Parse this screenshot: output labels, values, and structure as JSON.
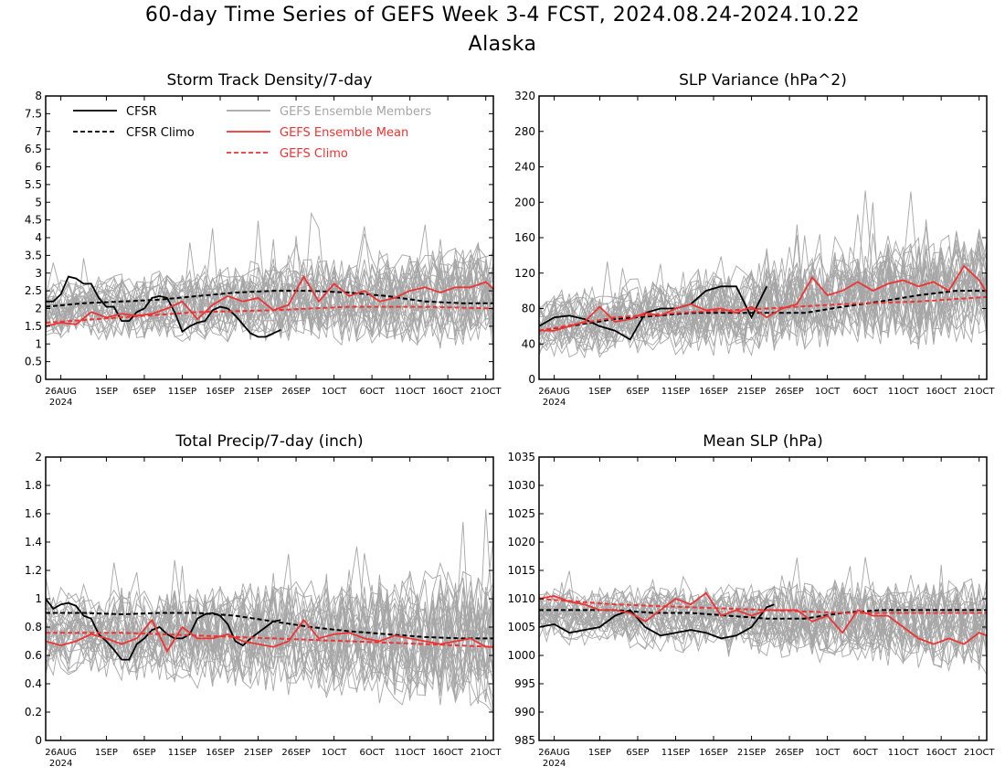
{
  "title": "60-day Time Series of GEFS Week 3-4 FCST, 2024.08.24-2024.10.22",
  "subtitle": "Alaska",
  "colors": {
    "cfsr": "#000000",
    "members": "#a6a6a6",
    "ens_mean": "#f03232",
    "gefs_climo": "#f03232"
  },
  "legend": {
    "cfsr": "CFSR",
    "cfsr_climo": "CFSR Climo",
    "members": "GEFS Ensemble Members",
    "ens_mean": "GEFS Ensemble Mean",
    "gefs_climo": "GEFS Climo"
  },
  "x_ticks": [
    "26AUG",
    "1SEP",
    "6SEP",
    "11SEP",
    "16SEP",
    "21SEP",
    "26SEP",
    "1OCT",
    "6OCT",
    "11OCT",
    "16OCT",
    "21OCT"
  ],
  "x_year": "2024",
  "chart_data": [
    {
      "type": "line",
      "title": "Storm Track Density/7-day",
      "ylim": [
        0,
        8
      ],
      "yticks": [
        "0",
        "0.5",
        "1",
        "1.5",
        "2",
        "2.5",
        "3",
        "3.5",
        "4",
        "4.5",
        "5",
        "5.5",
        "6",
        "6.5",
        "7",
        "7.5",
        "8"
      ],
      "x_range_days": [
        0,
        59
      ],
      "members_band": {
        "center": [
          2.0,
          2.4
        ],
        "spread": 0.9
      },
      "series": [
        {
          "name": "CFSR",
          "style": "solid",
          "color": "black",
          "x": [
            0,
            1,
            2,
            3,
            4,
            5,
            6,
            7,
            8,
            9,
            10,
            11,
            12,
            13,
            14,
            15,
            16,
            17,
            18,
            19,
            20,
            21,
            22,
            23,
            24,
            25,
            26,
            27,
            28,
            29,
            30,
            31
          ],
          "values": [
            2.2,
            2.2,
            2.4,
            2.9,
            2.85,
            2.7,
            2.7,
            2.3,
            2.05,
            2.05,
            1.65,
            1.65,
            1.9,
            2.0,
            2.3,
            2.35,
            2.3,
            1.9,
            1.35,
            1.5,
            1.6,
            1.65,
            1.95,
            2.05,
            2.0,
            1.8,
            1.55,
            1.3,
            1.2,
            1.2,
            1.3,
            1.4
          ]
        },
        {
          "name": "CFSR Climo",
          "style": "dashed",
          "color": "black",
          "x": [
            0,
            5,
            10,
            15,
            20,
            25,
            30,
            35,
            40,
            45,
            50,
            55,
            59
          ],
          "values": [
            2.05,
            2.15,
            2.2,
            2.25,
            2.35,
            2.45,
            2.5,
            2.5,
            2.45,
            2.35,
            2.2,
            2.15,
            2.15
          ]
        },
        {
          "name": "GEFS Ensemble Mean",
          "style": "solid",
          "color": "red",
          "x": [
            0,
            2,
            4,
            6,
            8,
            10,
            12,
            14,
            16,
            18,
            20,
            22,
            24,
            26,
            28,
            30,
            32,
            34,
            36,
            38,
            40,
            42,
            44,
            46,
            48,
            50,
            52,
            54,
            56,
            58,
            59
          ],
          "values": [
            1.5,
            1.6,
            1.55,
            1.9,
            1.75,
            1.85,
            1.8,
            1.85,
            2.0,
            2.2,
            1.7,
            2.1,
            2.35,
            2.2,
            2.3,
            1.95,
            2.1,
            2.9,
            2.2,
            2.7,
            2.35,
            2.5,
            2.2,
            2.3,
            2.5,
            2.6,
            2.45,
            2.6,
            2.6,
            2.75,
            2.55
          ]
        },
        {
          "name": "GEFS Climo",
          "style": "dashed",
          "color": "red",
          "x": [
            0,
            10,
            20,
            30,
            40,
            50,
            59
          ],
          "values": [
            1.6,
            1.75,
            1.9,
            1.95,
            2.05,
            2.05,
            2.0
          ]
        }
      ]
    },
    {
      "type": "line",
      "title": "SLP Variance (hPa^2)",
      "ylim": [
        0,
        320
      ],
      "yticks": [
        "0",
        "40",
        "80",
        "120",
        "160",
        "200",
        "240",
        "280",
        "320"
      ],
      "x_range_days": [
        0,
        59
      ],
      "members_band": {
        "center": [
          60,
          105
        ],
        "spread": 40
      },
      "series": [
        {
          "name": "CFSR",
          "style": "solid",
          "color": "black",
          "x": [
            0,
            2,
            4,
            6,
            8,
            10,
            12,
            14,
            16,
            18,
            20,
            22,
            24,
            26,
            28,
            30
          ],
          "values": [
            60,
            70,
            72,
            68,
            60,
            55,
            45,
            75,
            80,
            80,
            85,
            100,
            105,
            105,
            70,
            105
          ]
        },
        {
          "name": "CFSR Climo",
          "style": "dashed",
          "color": "black",
          "x": [
            0,
            10,
            20,
            30,
            35,
            40,
            45,
            50,
            55,
            59
          ],
          "values": [
            55,
            68,
            75,
            75,
            75,
            82,
            88,
            95,
            100,
            100
          ]
        },
        {
          "name": "GEFS Ensemble Mean",
          "style": "solid",
          "color": "red",
          "x": [
            0,
            2,
            4,
            6,
            8,
            10,
            12,
            14,
            16,
            18,
            20,
            22,
            24,
            26,
            28,
            30,
            32,
            34,
            36,
            38,
            40,
            42,
            44,
            46,
            48,
            50,
            52,
            54,
            56,
            58,
            59
          ],
          "values": [
            55,
            55,
            60,
            65,
            82,
            65,
            68,
            75,
            72,
            80,
            85,
            78,
            80,
            75,
            82,
            70,
            80,
            85,
            115,
            95,
            100,
            110,
            100,
            108,
            112,
            105,
            110,
            100,
            128,
            112,
            98
          ]
        },
        {
          "name": "GEFS Climo",
          "style": "dashed",
          "color": "red",
          "x": [
            0,
            10,
            20,
            30,
            40,
            50,
            59
          ],
          "values": [
            55,
            70,
            76,
            80,
            85,
            88,
            93
          ]
        }
      ]
    },
    {
      "type": "line",
      "title": "Total Precip/7-day (inch)",
      "ylim": [
        0,
        2
      ],
      "yticks": [
        "0",
        "0.2",
        "0.4",
        "0.6",
        "0.8",
        "1",
        "1.2",
        "1.4",
        "1.6",
        "1.8",
        "2"
      ],
      "x_range_days": [
        0,
        59
      ],
      "members_band": {
        "center": [
          0.75,
          0.7
        ],
        "spread": 0.3
      },
      "series": [
        {
          "name": "CFSR",
          "style": "solid",
          "color": "black",
          "x": [
            0,
            1,
            2,
            3,
            4,
            5,
            6,
            7,
            8,
            9,
            10,
            11,
            12,
            13,
            14,
            15,
            16,
            17,
            18,
            19,
            20,
            21,
            22,
            23,
            24,
            25,
            26,
            27,
            28,
            29,
            30,
            31
          ],
          "values": [
            1.0,
            0.93,
            0.96,
            0.97,
            0.95,
            0.88,
            0.86,
            0.75,
            0.7,
            0.64,
            0.57,
            0.57,
            0.68,
            0.72,
            0.78,
            0.8,
            0.75,
            0.72,
            0.72,
            0.75,
            0.86,
            0.89,
            0.9,
            0.88,
            0.82,
            0.7,
            0.67,
            0.72,
            0.76,
            0.8,
            0.84,
            0.85
          ]
        },
        {
          "name": "CFSR Climo",
          "style": "dashed",
          "color": "black",
          "x": [
            0,
            5,
            10,
            15,
            20,
            25,
            30,
            35,
            40,
            45,
            50,
            55,
            59
          ],
          "values": [
            0.9,
            0.9,
            0.89,
            0.9,
            0.9,
            0.88,
            0.84,
            0.8,
            0.77,
            0.75,
            0.73,
            0.72,
            0.72
          ]
        },
        {
          "name": "GEFS Ensemble Mean",
          "style": "solid",
          "color": "red",
          "x": [
            0,
            2,
            4,
            6,
            8,
            10,
            12,
            14,
            16,
            18,
            20,
            22,
            24,
            26,
            28,
            30,
            32,
            34,
            36,
            38,
            40,
            42,
            44,
            46,
            48,
            50,
            52,
            54,
            56,
            58,
            59
          ],
          "values": [
            0.7,
            0.67,
            0.7,
            0.75,
            0.72,
            0.68,
            0.72,
            0.85,
            0.63,
            0.8,
            0.72,
            0.72,
            0.75,
            0.7,
            0.68,
            0.66,
            0.7,
            0.85,
            0.72,
            0.75,
            0.76,
            0.72,
            0.7,
            0.74,
            0.72,
            0.7,
            0.68,
            0.7,
            0.72,
            0.66,
            0.66
          ]
        },
        {
          "name": "GEFS Climo",
          "style": "dashed",
          "color": "red",
          "x": [
            0,
            10,
            20,
            30,
            40,
            50,
            59
          ],
          "values": [
            0.76,
            0.76,
            0.74,
            0.72,
            0.7,
            0.68,
            0.66
          ]
        }
      ]
    },
    {
      "type": "line",
      "title": "Mean SLP (hPa)",
      "ylim": [
        985,
        1035
      ],
      "yticks": [
        "985",
        "990",
        "995",
        "1000",
        "1005",
        "1010",
        "1015",
        "1020",
        "1025",
        "1030",
        "1035"
      ],
      "x_range_days": [
        0,
        59
      ],
      "members_band": {
        "center": [
          1007,
          1005
        ],
        "spread": 5
      },
      "series": [
        {
          "name": "CFSR",
          "style": "solid",
          "color": "black",
          "x": [
            0,
            2,
            4,
            6,
            8,
            10,
            12,
            14,
            16,
            18,
            20,
            22,
            24,
            26,
            28,
            30,
            31
          ],
          "values": [
            1005,
            1005.5,
            1004,
            1004.5,
            1005,
            1007,
            1008,
            1005,
            1003.5,
            1004,
            1004.5,
            1004,
            1003,
            1003.5,
            1005,
            1008.5,
            1009
          ]
        },
        {
          "name": "CFSR Climo",
          "style": "dashed",
          "color": "black",
          "x": [
            0,
            5,
            10,
            15,
            20,
            25,
            30,
            35,
            40,
            45,
            50,
            55,
            59
          ],
          "values": [
            1008,
            1008,
            1008,
            1007.5,
            1007.5,
            1007,
            1006.5,
            1006.5,
            1007.5,
            1008,
            1008,
            1008,
            1008
          ]
        },
        {
          "name": "GEFS Ensemble Mean",
          "style": "solid",
          "color": "red",
          "x": [
            0,
            2,
            4,
            6,
            8,
            10,
            12,
            14,
            16,
            18,
            20,
            22,
            24,
            26,
            28,
            30,
            32,
            34,
            36,
            38,
            40,
            42,
            44,
            46,
            48,
            50,
            52,
            54,
            56,
            58,
            59
          ],
          "values": [
            1010,
            1010.5,
            1009.5,
            1009,
            1008,
            1008,
            1007.5,
            1006,
            1008,
            1010,
            1009,
            1011,
            1007,
            1008,
            1007,
            1008,
            1008,
            1008,
            1006,
            1007,
            1004,
            1008,
            1007,
            1007,
            1005,
            1003,
            1002,
            1003,
            1002,
            1004,
            1003.5
          ]
        },
        {
          "name": "GEFS Climo",
          "style": "dashed",
          "color": "red",
          "x": [
            0,
            10,
            20,
            30,
            40,
            50,
            59
          ],
          "values": [
            1010,
            1009,
            1008.5,
            1008,
            1007.5,
            1007.5,
            1007.5
          ]
        }
      ]
    }
  ]
}
